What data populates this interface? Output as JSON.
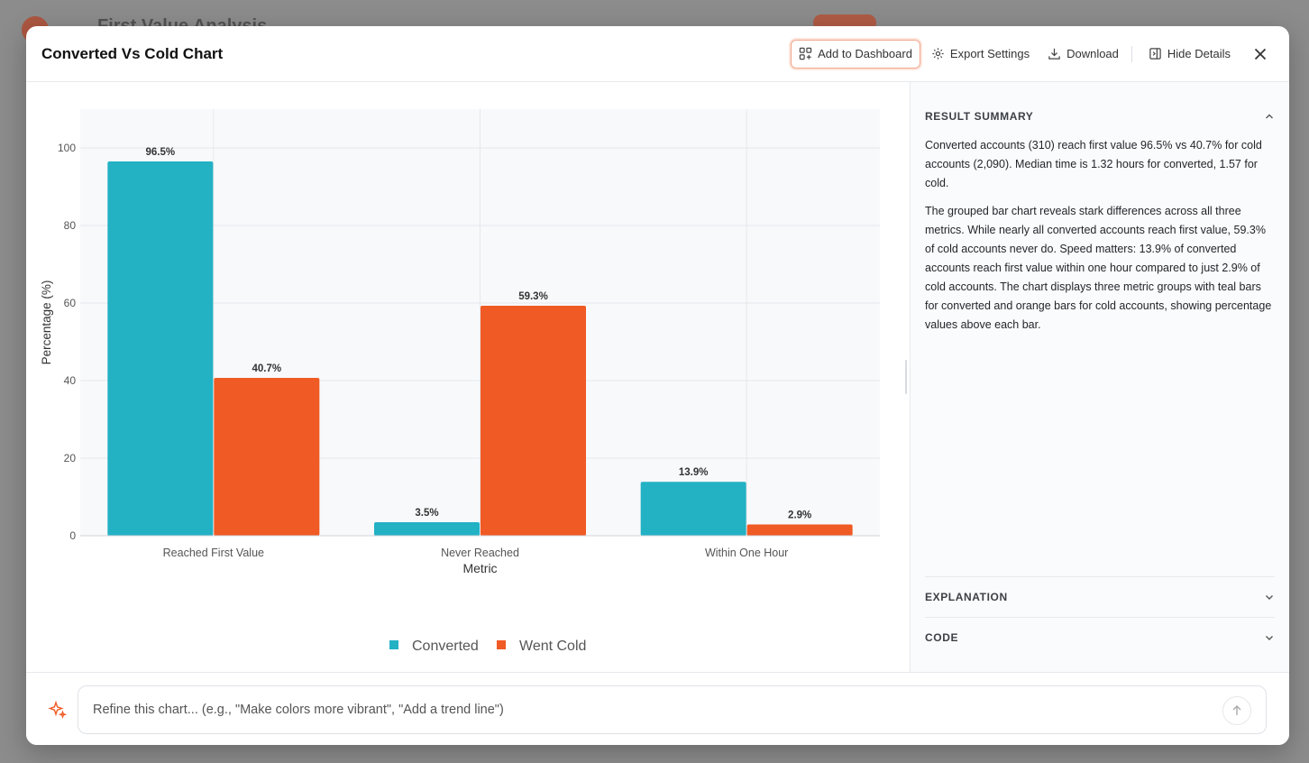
{
  "background": {
    "title": "First Value Analysis"
  },
  "modal": {
    "title": "Converted Vs Cold Chart",
    "buttons": {
      "add_to_dashboard": "Add to Dashboard",
      "export_settings": "Export Settings",
      "download": "Download",
      "hide_details": "Hide Details"
    }
  },
  "sidebar": {
    "result_summary_title": "RESULT SUMMARY",
    "summary_paragraphs": [
      "Converted accounts (310) reach first value 96.5% vs 40.7% for cold accounts (2,090). Median time is 1.32 hours for converted, 1.57 for cold.",
      "The grouped bar chart reveals stark differences across all three metrics. While nearly all converted accounts reach first value, 59.3% of cold accounts never do. Speed matters: 13.9% of converted accounts reach first value within one hour compared to just 2.9% of cold accounts. The chart displays three metric groups with teal bars for converted and orange bars for cold accounts, showing percentage values above each bar."
    ],
    "explanation_title": "EXPLANATION",
    "code_title": "CODE"
  },
  "footer": {
    "placeholder": "Refine this chart... (e.g., \"Make colors more vibrant\", \"Add a trend line\")"
  },
  "colors": {
    "converted": "#23b1c4",
    "went_cold": "#f05a24",
    "accent": "#f05a24"
  },
  "chart_data": {
    "type": "bar",
    "categories": [
      "Reached First Value",
      "Never Reached",
      "Within One Hour"
    ],
    "series": [
      {
        "name": "Converted",
        "values": [
          96.5,
          3.5,
          13.9
        ],
        "labels": [
          "96.5%",
          "3.5%",
          "13.9%"
        ]
      },
      {
        "name": "Went Cold",
        "values": [
          40.7,
          59.3,
          2.9
        ],
        "labels": [
          "40.7%",
          "59.3%",
          "2.9%"
        ]
      }
    ],
    "xlabel": "Metric",
    "ylabel": "Percentage (%)",
    "ylim": [
      0,
      110
    ],
    "yticks": [
      "0",
      "20",
      "40",
      "60",
      "80",
      "100"
    ],
    "ytick_values": [
      0,
      20,
      40,
      60,
      80,
      100
    ],
    "grid": true,
    "legend": "bottom-center"
  }
}
